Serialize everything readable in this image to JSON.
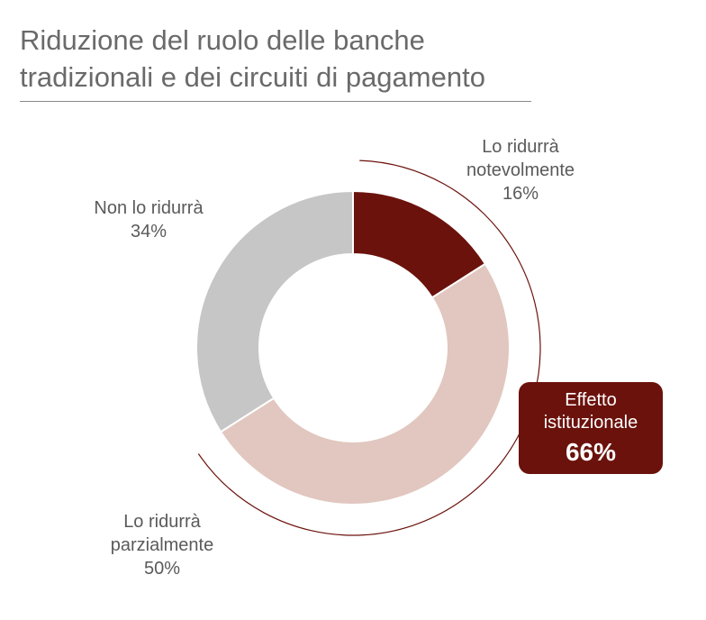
{
  "title": {
    "line1": "Riduzione del ruolo delle banche",
    "line2": "tradizionali e dei circuiti di pagamento"
  },
  "chart_data": {
    "type": "donut",
    "slices": [
      {
        "label_line1": "Lo ridurrà",
        "label_line2": "notevolmente",
        "value": 16,
        "value_label": "16%",
        "color": "#6b120c"
      },
      {
        "label_line1": "Lo ridurrà",
        "label_line2": "parzialmente",
        "value": 50,
        "value_label": "50%",
        "color": "#e1c7bf"
      },
      {
        "label_line1": "Non lo ridurrà",
        "label_line2": "",
        "value": 34,
        "value_label": "34%",
        "color": "#c6c6c6"
      }
    ],
    "callout": {
      "line1": "Effetto",
      "line2": "istituzionale",
      "value_label": "66%",
      "value": 66,
      "color": "#6b120c"
    }
  }
}
